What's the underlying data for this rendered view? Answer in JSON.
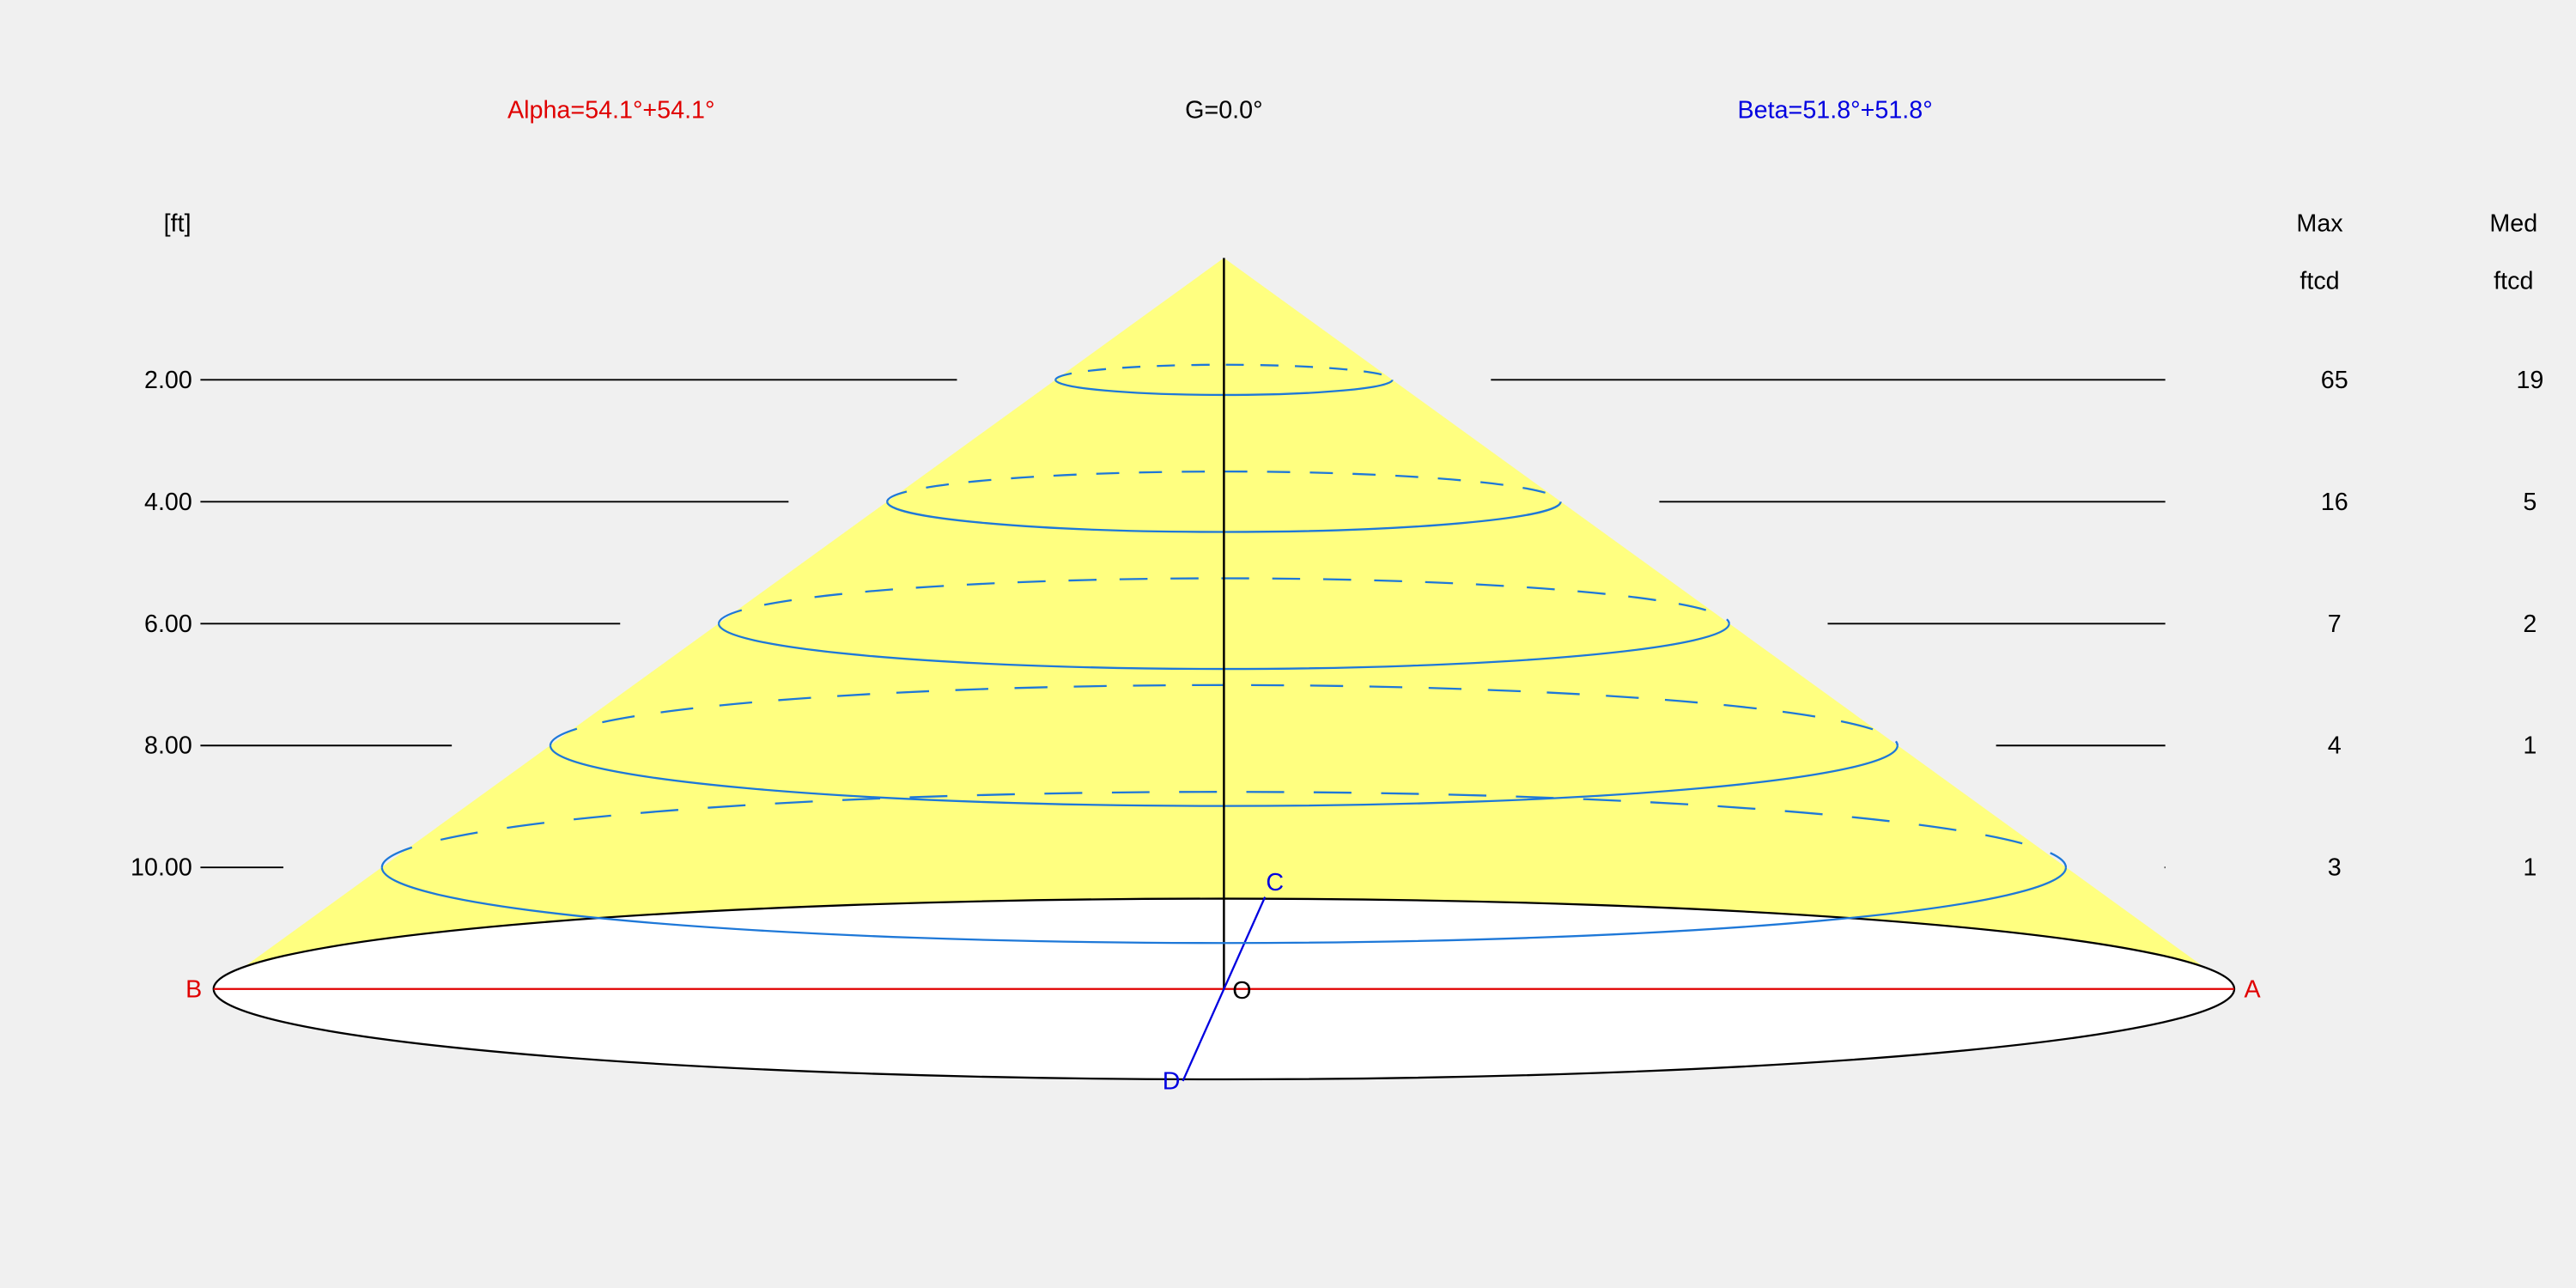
{
  "header": {
    "alpha": "Alpha=54.1°+54.1°",
    "gamma": "G=0.0°",
    "beta": "Beta=51.8°+51.8°"
  },
  "table": {
    "unit": "[ft]",
    "columns": [
      {
        "name": "Max",
        "unit": "ftcd"
      },
      {
        "name": "Med",
        "unit": "ftcd"
      }
    ],
    "rows": [
      [
        "2.00",
        "65",
        "19"
      ],
      [
        "4.00",
        "16",
        "5"
      ],
      [
        "6.00",
        "7",
        "2"
      ],
      [
        "8.00",
        "4",
        "1"
      ],
      [
        "10.00",
        "3",
        "1"
      ]
    ]
  },
  "points": {
    "a": "A",
    "b": "B",
    "c": "C",
    "d": "D",
    "o": "O"
  }
}
